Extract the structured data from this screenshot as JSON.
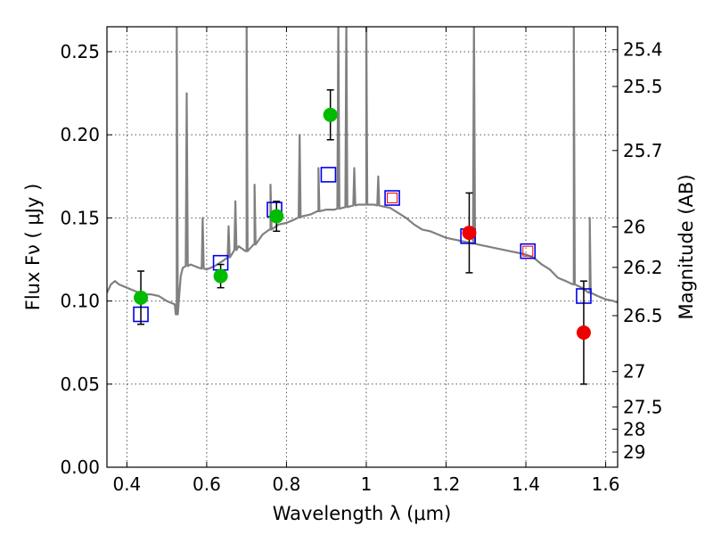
{
  "chart_data": {
    "type": "scatter",
    "xlabel": "Wavelength  λ (μm)",
    "ylabel": "Flux  Fν  ( μJy )",
    "y2label": "Magnitude (AB)",
    "xlim": [
      0.35,
      1.63
    ],
    "ylim": [
      0.0,
      0.265
    ],
    "grid": true,
    "x_ticks": [
      {
        "value": 0.4,
        "label": "0.4"
      },
      {
        "value": 0.6,
        "label": "0.6"
      },
      {
        "value": 0.8,
        "label": "0.8"
      },
      {
        "value": 1.0,
        "label": "1"
      },
      {
        "value": 1.2,
        "label": "1.2"
      },
      {
        "value": 1.4,
        "label": "1.4"
      },
      {
        "value": 1.6,
        "label": "1.6"
      }
    ],
    "y_ticks": [
      {
        "value": 0.0,
        "label": "0.00"
      },
      {
        "value": 0.05,
        "label": "0.05"
      },
      {
        "value": 0.1,
        "label": "0.10"
      },
      {
        "value": 0.15,
        "label": "0.15"
      },
      {
        "value": 0.2,
        "label": "0.20"
      },
      {
        "value": 0.25,
        "label": "0.25"
      }
    ],
    "y2_ticks": [
      {
        "mag": 25.4,
        "label": "25.4"
      },
      {
        "mag": 25.5,
        "label": "25.5"
      },
      {
        "mag": 25.7,
        "label": "25.7"
      },
      {
        "mag": 26.0,
        "label": "26"
      },
      {
        "mag": 26.2,
        "label": "26.2"
      },
      {
        "mag": 26.5,
        "label": "26.5"
      },
      {
        "mag": 27.0,
        "label": "27"
      },
      {
        "mag": 27.5,
        "label": "27.5"
      },
      {
        "mag": 28.0,
        "label": "28"
      },
      {
        "mag": 29.0,
        "label": "29"
      }
    ],
    "colors": {
      "model": "#808080",
      "observed_optical": "#00bb00",
      "observed_nir": "#ee0000",
      "model_photometry": "#0000ee",
      "inner_square": "#ee0000",
      "errorbar": "#000000",
      "grid": "#555555"
    },
    "model_spectrum": {
      "x": [
        0.35,
        0.36,
        0.37,
        0.38,
        0.4,
        0.42,
        0.44,
        0.46,
        0.48,
        0.5,
        0.52,
        0.525,
        0.53,
        0.535,
        0.54,
        0.56,
        0.58,
        0.6,
        0.62,
        0.64,
        0.66,
        0.68,
        0.7,
        0.72,
        0.74,
        0.76,
        0.78,
        0.8,
        0.82,
        0.84,
        0.86,
        0.88,
        0.9,
        0.92,
        0.94,
        0.96,
        0.98,
        1.0,
        1.02,
        1.04,
        1.06,
        1.08,
        1.1,
        1.12,
        1.14,
        1.16,
        1.18,
        1.2,
        1.22,
        1.24,
        1.26,
        1.28,
        1.3,
        1.32,
        1.34,
        1.36,
        1.38,
        1.4,
        1.42,
        1.44,
        1.46,
        1.48,
        1.5,
        1.52,
        1.54,
        1.56,
        1.58,
        1.6,
        1.62,
        1.63
      ],
      "flux": [
        0.105,
        0.11,
        0.112,
        0.11,
        0.108,
        0.106,
        0.104,
        0.104,
        0.103,
        0.1,
        0.098,
        0.092,
        0.1,
        0.115,
        0.12,
        0.122,
        0.12,
        0.119,
        0.121,
        0.124,
        0.127,
        0.133,
        0.13,
        0.134,
        0.14,
        0.143,
        0.146,
        0.147,
        0.149,
        0.151,
        0.152,
        0.154,
        0.155,
        0.155,
        0.156,
        0.157,
        0.158,
        0.158,
        0.158,
        0.157,
        0.156,
        0.153,
        0.15,
        0.146,
        0.143,
        0.142,
        0.14,
        0.138,
        0.137,
        0.136,
        0.135,
        0.134,
        0.133,
        0.132,
        0.131,
        0.13,
        0.129,
        0.128,
        0.126,
        0.122,
        0.119,
        0.114,
        0.112,
        0.11,
        0.108,
        0.105,
        0.103,
        0.101,
        0.1,
        0.099
      ]
    },
    "emission_lines": [
      {
        "x": 0.525,
        "peak": 0.27
      },
      {
        "x": 0.55,
        "peak": 0.225
      },
      {
        "x": 0.59,
        "peak": 0.15
      },
      {
        "x": 0.655,
        "peak": 0.145
      },
      {
        "x": 0.672,
        "peak": 0.16
      },
      {
        "x": 0.7,
        "peak": 0.27
      },
      {
        "x": 0.72,
        "peak": 0.17
      },
      {
        "x": 0.76,
        "peak": 0.17
      },
      {
        "x": 0.833,
        "peak": 0.2
      },
      {
        "x": 0.88,
        "peak": 0.18
      },
      {
        "x": 0.93,
        "peak": 0.27
      },
      {
        "x": 0.95,
        "peak": 0.27
      },
      {
        "x": 0.97,
        "peak": 0.18
      },
      {
        "x": 1.0,
        "peak": 0.27
      },
      {
        "x": 1.03,
        "peak": 0.175
      },
      {
        "x": 1.27,
        "peak": 0.27
      },
      {
        "x": 1.52,
        "peak": 0.27
      },
      {
        "x": 1.56,
        "peak": 0.15
      }
    ],
    "model_photometry": [
      {
        "x": 0.435,
        "y": 0.092,
        "inner": false
      },
      {
        "x": 0.635,
        "y": 0.123,
        "inner": false
      },
      {
        "x": 0.77,
        "y": 0.155,
        "inner": false
      },
      {
        "x": 0.905,
        "y": 0.176,
        "inner": false
      },
      {
        "x": 1.065,
        "y": 0.162,
        "inner": true
      },
      {
        "x": 1.255,
        "y": 0.139,
        "inner": false
      },
      {
        "x": 1.405,
        "y": 0.13,
        "inner": true
      },
      {
        "x": 1.545,
        "y": 0.103,
        "inner": false
      }
    ],
    "observed_optical": [
      {
        "x": 0.435,
        "y": 0.102,
        "err": 0.016
      },
      {
        "x": 0.635,
        "y": 0.115,
        "err": 0.007
      },
      {
        "x": 0.775,
        "y": 0.151,
        "err": 0.009
      },
      {
        "x": 0.91,
        "y": 0.212,
        "err": 0.015
      }
    ],
    "observed_nir": [
      {
        "x": 1.258,
        "y": 0.141,
        "err": 0.024
      },
      {
        "x": 1.545,
        "y": 0.081,
        "err": 0.031
      }
    ]
  }
}
